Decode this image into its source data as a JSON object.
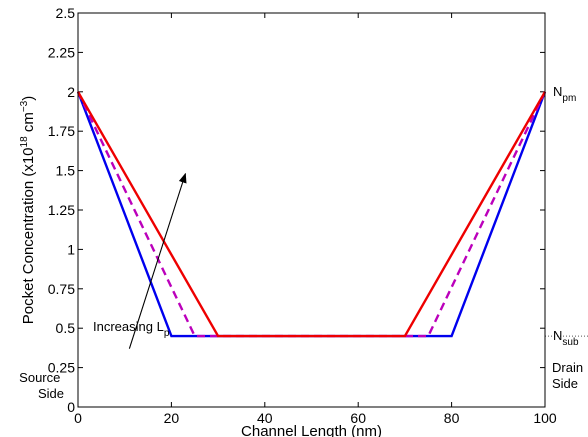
{
  "chart_data": {
    "type": "line",
    "xlabel": "Channel Length (nm)",
    "ylabel": {
      "base": "Pocket Concentration (x10",
      "exp1": "18",
      "mid": " cm",
      "exp2": "−3",
      "end": ")"
    },
    "xlim": [
      0,
      100
    ],
    "ylim": [
      0,
      2.5
    ],
    "xticks": [
      0,
      20,
      40,
      60,
      80,
      100
    ],
    "xtick_labels": [
      "0",
      "20",
      "40",
      "60",
      "80",
      "100"
    ],
    "yticks": [
      0,
      0.25,
      0.5,
      0.75,
      1,
      1.25,
      1.5,
      1.75,
      2,
      2.25,
      2.5
    ],
    "ytick_labels": [
      "0",
      "0.25",
      "0.5",
      "0.75",
      "1",
      "1.25",
      "1.5",
      "1.75",
      "2",
      "2.25",
      "2.5"
    ],
    "grid": false,
    "series": [
      {
        "color": "#0000ee",
        "dash": false,
        "x": [
          0,
          20,
          80,
          100
        ],
        "y": [
          2.0,
          0.45,
          0.45,
          2.0
        ]
      },
      {
        "color": "#bb00bb",
        "dash": true,
        "x": [
          0,
          25,
          75,
          100
        ],
        "y": [
          2.0,
          0.45,
          0.45,
          2.0
        ]
      },
      {
        "color": "#ee0000",
        "dash": false,
        "x": [
          0,
          30,
          70,
          100
        ],
        "y": [
          2.0,
          0.45,
          0.45,
          2.0
        ]
      }
    ],
    "reference_line": {
      "y": 0.45,
      "x_from": 100,
      "x_to": 120,
      "color": "#555555"
    },
    "annotations": {
      "npm": {
        "main": "N",
        "sub": "pm"
      },
      "nsub": {
        "main": "N",
        "sub": "sub"
      },
      "increasing": {
        "main": "Increasing L",
        "sub": "p"
      },
      "arrow": {
        "x_from": 11,
        "y_from": 0.37,
        "x_to": 23,
        "y_to": 1.48
      },
      "source_side": [
        "Source",
        "Side"
      ],
      "drain_side": [
        "Drain",
        "Side"
      ]
    }
  }
}
